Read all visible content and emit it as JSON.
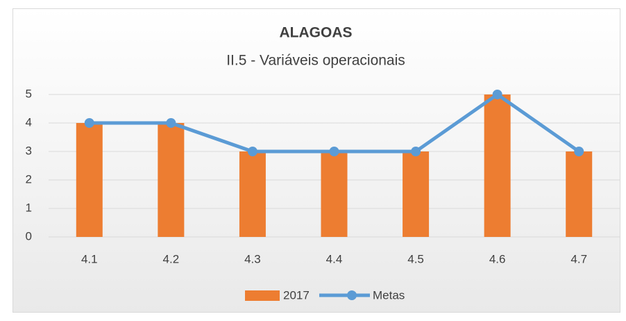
{
  "chart_data": {
    "type": "bar",
    "title": "ALAGOAS",
    "subtitle": "II.5 - Variáveis operacionais",
    "categories": [
      "4.1",
      "4.2",
      "4.3",
      "4.4",
      "4.5",
      "4.6",
      "4.7"
    ],
    "series": [
      {
        "name": "2017",
        "type": "bar",
        "color": "#ed7d31",
        "values": [
          4,
          4,
          3,
          3,
          3,
          5,
          3
        ]
      },
      {
        "name": "Metas",
        "type": "line",
        "color": "#5b9bd5",
        "values": [
          4,
          4,
          3,
          3,
          3,
          5,
          3
        ]
      }
    ],
    "ylim": [
      0,
      5
    ],
    "yticks": [
      0,
      1,
      2,
      3,
      4,
      5
    ],
    "grid": true,
    "legend": "bottom"
  }
}
